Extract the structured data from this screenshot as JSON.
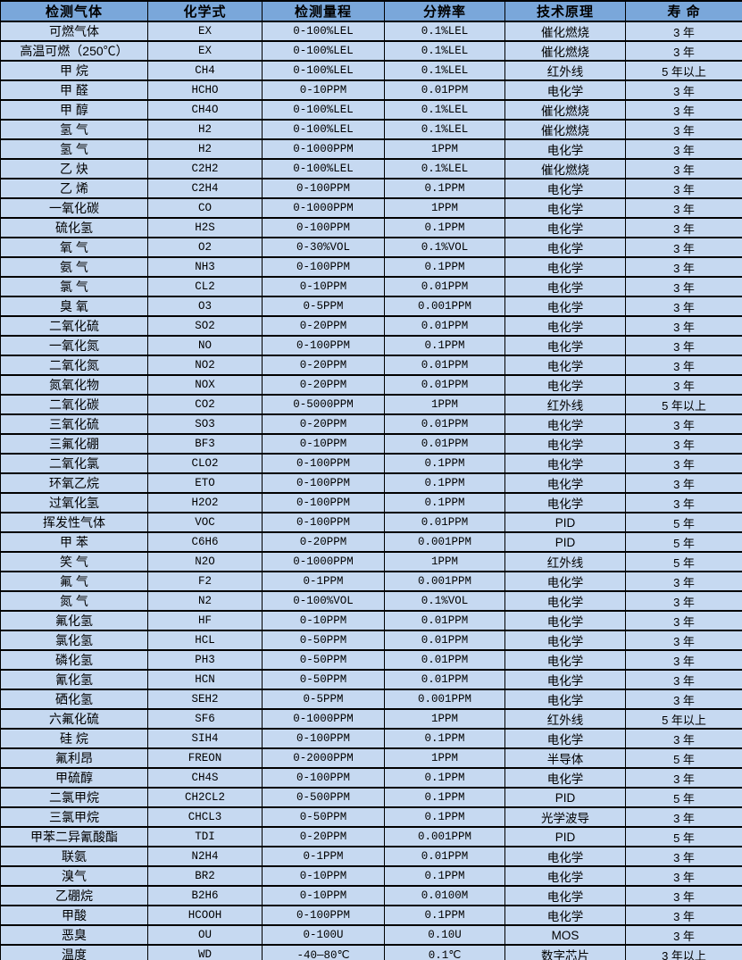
{
  "table": {
    "headers": [
      "检测气体",
      "化学式",
      "检测量程",
      "分辨率",
      "技术原理",
      "寿 命"
    ],
    "column_keys": [
      "gas",
      "formula",
      "range",
      "resolution",
      "principle",
      "lifespan"
    ],
    "rows": [
      [
        "可燃气体",
        "EX",
        "0-100%LEL",
        "0.1%LEL",
        "催化燃烧",
        "3 年"
      ],
      [
        "高温可燃（250℃）",
        "EX",
        "0-100%LEL",
        "0.1%LEL",
        "催化燃烧",
        "3 年"
      ],
      [
        "甲 烷",
        "CH4",
        "0-100%LEL",
        "0.1%LEL",
        "红外线",
        "5 年以上"
      ],
      [
        "甲 醛",
        "HCHO",
        "0-10PPM",
        "0.01PPM",
        "电化学",
        "3 年"
      ],
      [
        "甲 醇",
        "CH4O",
        "0-100%LEL",
        "0.1%LEL",
        "催化燃烧",
        "3 年"
      ],
      [
        "氢 气",
        "H2",
        "0-100%LEL",
        "0.1%LEL",
        "催化燃烧",
        "3 年"
      ],
      [
        "氢 气",
        "H2",
        "0-1000PPM",
        "1PPM",
        "电化学",
        "3 年"
      ],
      [
        "乙 炔",
        "C2H2",
        "0-100%LEL",
        "0.1%LEL",
        "催化燃烧",
        "3 年"
      ],
      [
        "乙 烯",
        "C2H4",
        "0-100PPM",
        "0.1PPM",
        "电化学",
        "3 年"
      ],
      [
        "一氧化碳",
        "CO",
        "0-1000PPM",
        "1PPM",
        "电化学",
        "3 年"
      ],
      [
        "硫化氢",
        "H2S",
        "0-100PPM",
        "0.1PPM",
        "电化学",
        "3 年"
      ],
      [
        "氧 气",
        "O2",
        "0-30%VOL",
        "0.1%VOL",
        "电化学",
        "3 年"
      ],
      [
        "氨 气",
        "NH3",
        "0-100PPM",
        "0.1PPM",
        "电化学",
        "3 年"
      ],
      [
        "氯 气",
        "CL2",
        "0-10PPM",
        "0.01PPM",
        "电化学",
        "3 年"
      ],
      [
        "臭 氧",
        "O3",
        "0-5PPM",
        "0.001PPM",
        "电化学",
        "3 年"
      ],
      [
        "二氧化硫",
        "SO2",
        "0-20PPM",
        "0.01PPM",
        "电化学",
        "3 年"
      ],
      [
        "一氧化氮",
        "NO",
        "0-100PPM",
        "0.1PPM",
        "电化学",
        "3 年"
      ],
      [
        "二氧化氮",
        "NO2",
        "0-20PPM",
        "0.01PPM",
        "电化学",
        "3 年"
      ],
      [
        "氮氧化物",
        "NOX",
        "0-20PPM",
        "0.01PPM",
        "电化学",
        "3 年"
      ],
      [
        "二氧化碳",
        "CO2",
        "0-5000PPM",
        "1PPM",
        "红外线",
        "5 年以上"
      ],
      [
        "三氧化硫",
        "SO3",
        "0-20PPM",
        "0.01PPM",
        "电化学",
        "3 年"
      ],
      [
        "三氟化硼",
        "BF3",
        "0-10PPM",
        "0.01PPM",
        "电化学",
        "3 年"
      ],
      [
        "二氧化氯",
        "CLO2",
        "0-100PPM",
        "0.1PPM",
        "电化学",
        "3 年"
      ],
      [
        "环氧乙烷",
        "ETO",
        "0-100PPM",
        "0.1PPM",
        "电化学",
        "3 年"
      ],
      [
        "过氧化氢",
        "H2O2",
        "0-100PPM",
        "0.1PPM",
        "电化学",
        "3 年"
      ],
      [
        "挥发性气体",
        "VOC",
        "0-100PPM",
        "0.01PPM",
        "PID",
        "5 年"
      ],
      [
        "甲 苯",
        "C6H6",
        "0-20PPM",
        "0.001PPM",
        "PID",
        "5 年"
      ],
      [
        "笑 气",
        "N2O",
        "0-1000PPM",
        "1PPM",
        "红外线",
        "5 年"
      ],
      [
        "氟 气",
        "F2",
        "0-1PPM",
        "0.001PPM",
        "电化学",
        "3 年"
      ],
      [
        "氮 气",
        "N2",
        "0-100%VOL",
        "0.1%VOL",
        "电化学",
        "3 年"
      ],
      [
        "氟化氢",
        "HF",
        "0-10PPM",
        "0.01PPM",
        "电化学",
        "3 年"
      ],
      [
        "氯化氢",
        "HCL",
        "0-50PPM",
        "0.01PPM",
        "电化学",
        "3 年"
      ],
      [
        "磷化氢",
        "PH3",
        "0-50PPM",
        "0.01PPM",
        "电化学",
        "3 年"
      ],
      [
        "氰化氢",
        "HCN",
        "0-50PPM",
        "0.01PPM",
        "电化学",
        "3 年"
      ],
      [
        "硒化氢",
        "SEH2",
        "0-5PPM",
        "0.001PPM",
        "电化学",
        "3 年"
      ],
      [
        "六氟化硫",
        "SF6",
        "0-1000PPM",
        "1PPM",
        "红外线",
        "5 年以上"
      ],
      [
        "硅 烷",
        "SIH4",
        "0-100PPM",
        "0.1PPM",
        "电化学",
        "3 年"
      ],
      [
        "氟利昂",
        "FREON",
        "0-2000PPM",
        "1PPM",
        "半导体",
        "5 年"
      ],
      [
        "甲硫醇",
        "CH4S",
        "0-100PPM",
        "0.1PPM",
        "电化学",
        "3 年"
      ],
      [
        "二氯甲烷",
        "CH2CL2",
        "0-500PPM",
        "0.1PPM",
        "PID",
        "5 年"
      ],
      [
        "三氯甲烷",
        "CHCL3",
        "0-50PPM",
        "0.1PPM",
        "光学波导",
        "3 年"
      ],
      [
        "甲苯二异氰酸酯",
        "TDI",
        "0-20PPM",
        "0.001PPM",
        "PID",
        "5 年"
      ],
      [
        "联氨",
        "N2H4",
        "0-1PPM",
        "0.01PPM",
        "电化学",
        "3 年"
      ],
      [
        "溴气",
        "BR2",
        "0-10PPM",
        "0.1PPM",
        "电化学",
        "3 年"
      ],
      [
        "乙硼烷",
        "B2H6",
        "0-10PPM",
        "0.0100M",
        "电化学",
        "3 年"
      ],
      [
        "甲酸",
        "HCOOH",
        "0-100PPM",
        "0.1PPM",
        "电化学",
        "3 年"
      ],
      [
        "恶臭",
        "OU",
        "0-100U",
        "0.10U",
        "MOS",
        "3 年"
      ],
      [
        "温度",
        "WD",
        "-40—80℃",
        "0.1℃",
        "数字芯片",
        "3 年以上"
      ],
      [
        "湿度",
        "SD",
        "0-100%RH",
        "0.1%RH",
        "数字芯片",
        "3 年以上"
      ]
    ],
    "colors": {
      "header_bg": "#7aa7da",
      "row_bg": "#c6d9f1",
      "border": "#000000",
      "text": "#000000"
    }
  }
}
